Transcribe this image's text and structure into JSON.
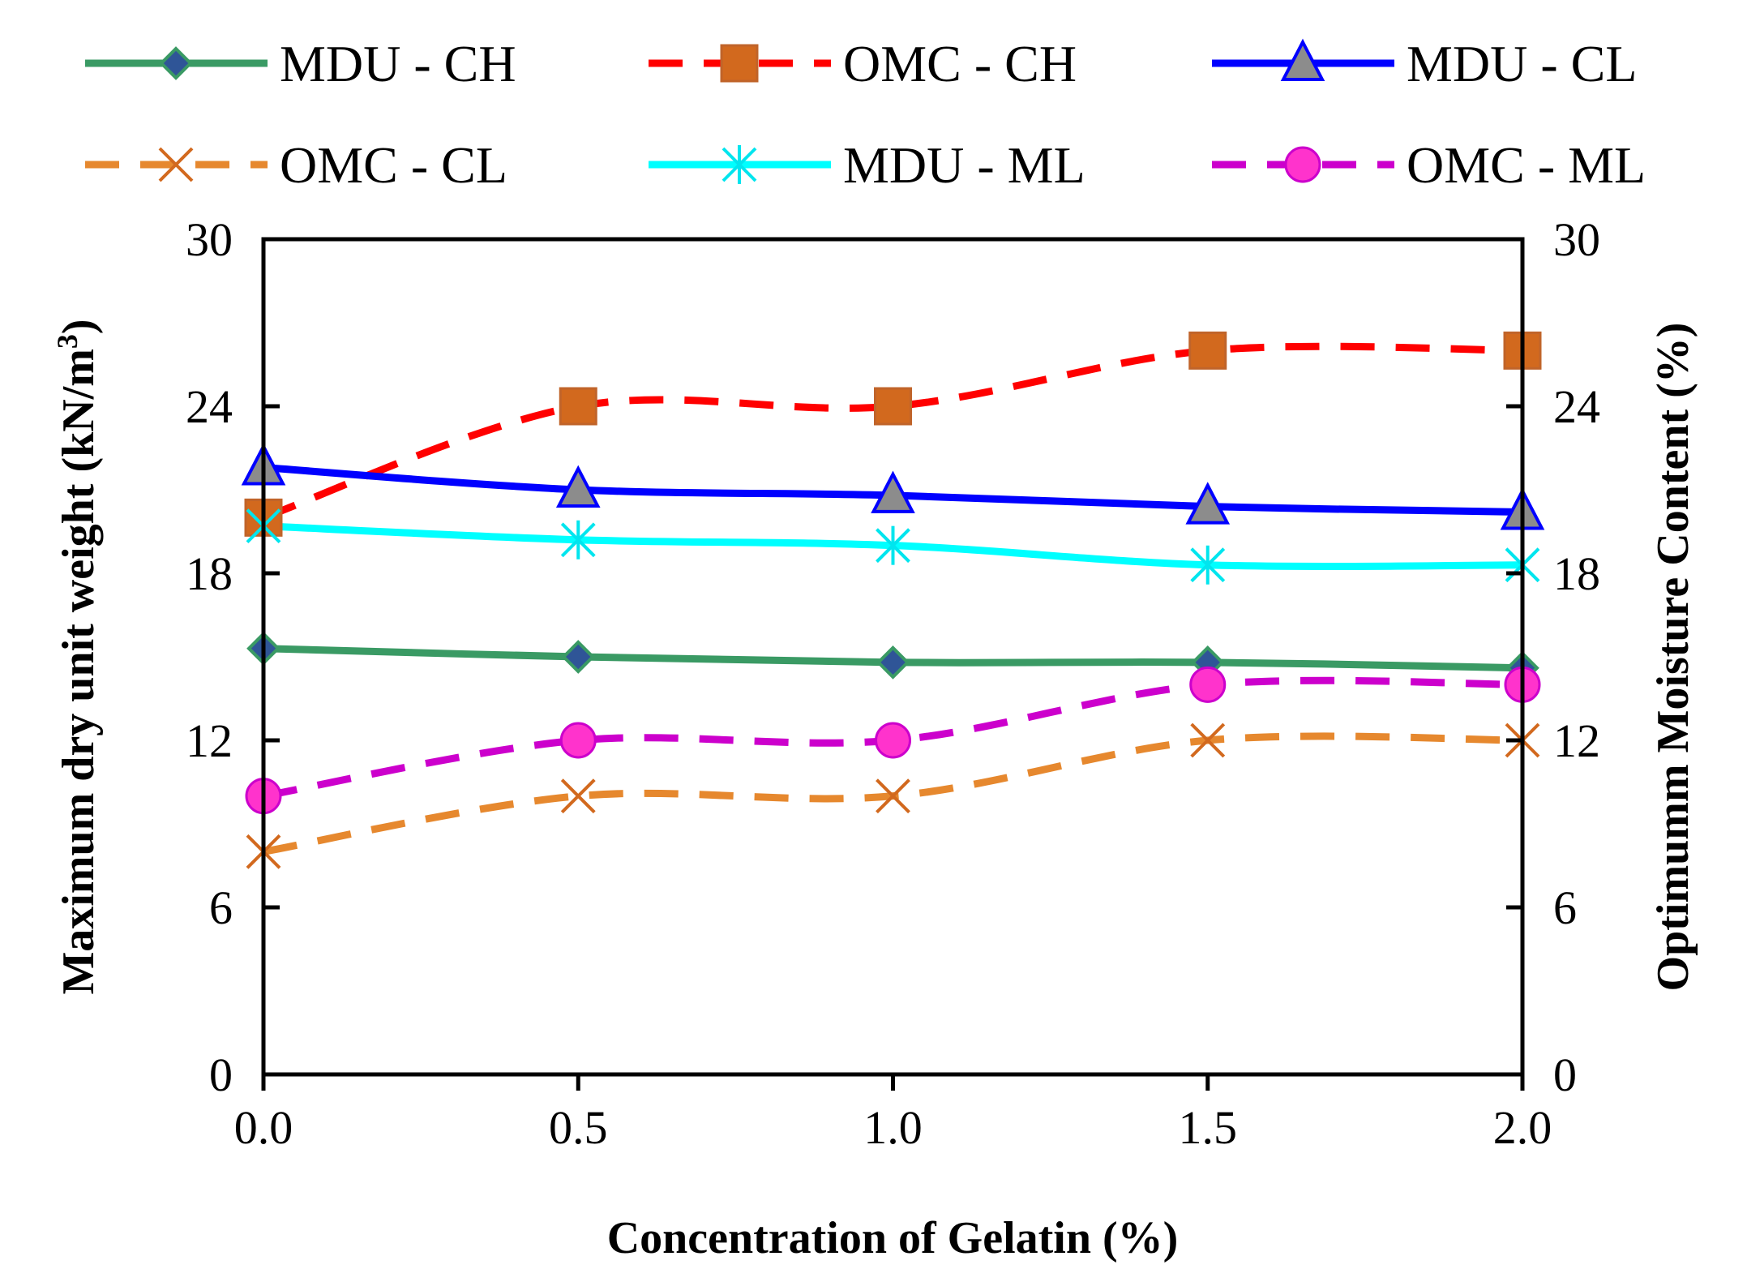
{
  "chart_data": {
    "type": "line",
    "title": "",
    "xlabel": "Concentration of Gelatin (%)",
    "ylabel": "Maximum dry unit weight (kN/m",
    "ylabel_sup": "3",
    "ylabel_close": ")",
    "y2label": "Optimumm Moisture Content (%)",
    "x": [
      0.0,
      0.5,
      1.0,
      1.5,
      2.0
    ],
    "xlim": [
      0,
      2
    ],
    "ylim": [
      0,
      30
    ],
    "y2lim": [
      0,
      30
    ],
    "x_ticks": [
      {
        "value": 0.0,
        "label": "0.0"
      },
      {
        "value": 0.5,
        "label": "0.5"
      },
      {
        "value": 1.0,
        "label": "1.0"
      },
      {
        "value": 1.5,
        "label": "1.5"
      },
      {
        "value": 2.0,
        "label": "2.0"
      }
    ],
    "y_ticks": [
      {
        "value": 0,
        "label": "0"
      },
      {
        "value": 6,
        "label": "6"
      },
      {
        "value": 12,
        "label": "12"
      },
      {
        "value": 18,
        "label": "18"
      },
      {
        "value": 24,
        "label": "24"
      },
      {
        "value": 30,
        "label": "30"
      }
    ],
    "y2_ticks": [
      {
        "value": 0,
        "label": "0"
      },
      {
        "value": 6,
        "label": "6"
      },
      {
        "value": 12,
        "label": "12"
      },
      {
        "value": 18,
        "label": "18"
      },
      {
        "value": 24,
        "label": "24"
      },
      {
        "value": 30,
        "label": "30"
      }
    ],
    "grid": false,
    "legend_position": "top",
    "series": [
      {
        "key": "mdu-ch",
        "name": "MDU - CH",
        "axis": "left",
        "values": [
          15.3,
          15.0,
          14.8,
          14.8,
          14.6
        ],
        "color": "#3a9a64",
        "dash": "solid",
        "marker": "diamond",
        "marker_fill": "#2f5597",
        "marker_stroke": "#3a9a64"
      },
      {
        "key": "omc-ch",
        "name": "OMC - CH",
        "axis": "right",
        "values": [
          20.0,
          24.0,
          24.0,
          26.0,
          26.0
        ],
        "color": "#ff0000",
        "dash": "dashed",
        "marker": "square",
        "marker_fill": "#d2691e",
        "marker_stroke": "#c0642a"
      },
      {
        "key": "mdu-cl",
        "name": "MDU - CL",
        "axis": "left",
        "values": [
          21.8,
          21.0,
          20.8,
          20.4,
          20.2
        ],
        "color": "#0000ff",
        "dash": "solid",
        "marker": "triangle",
        "marker_fill": "#8c8c8c",
        "marker_stroke": "#0000ff"
      },
      {
        "key": "omc-cl",
        "name": "OMC - CL",
        "axis": "right",
        "values": [
          8.0,
          10.0,
          10.0,
          12.0,
          12.0
        ],
        "color": "#e6882e",
        "dash": "dashed",
        "marker": "x",
        "marker_fill": "none",
        "marker_stroke": "#d2691e"
      },
      {
        "key": "mdu-ml",
        "name": "MDU - ML",
        "axis": "left",
        "values": [
          19.7,
          19.2,
          19.0,
          18.3,
          18.3
        ],
        "color": "#00ffff",
        "dash": "solid",
        "marker": "asterisk",
        "marker_fill": "none",
        "marker_stroke": "#00e5ee"
      },
      {
        "key": "omc-ml",
        "name": "OMC - ML",
        "axis": "right",
        "values": [
          10.0,
          12.0,
          12.0,
          14.0,
          14.0
        ],
        "color": "#cc00cc",
        "dash": "dashed",
        "marker": "circle",
        "marker_fill": "#ff33cc",
        "marker_stroke": "#cc00cc"
      }
    ]
  }
}
